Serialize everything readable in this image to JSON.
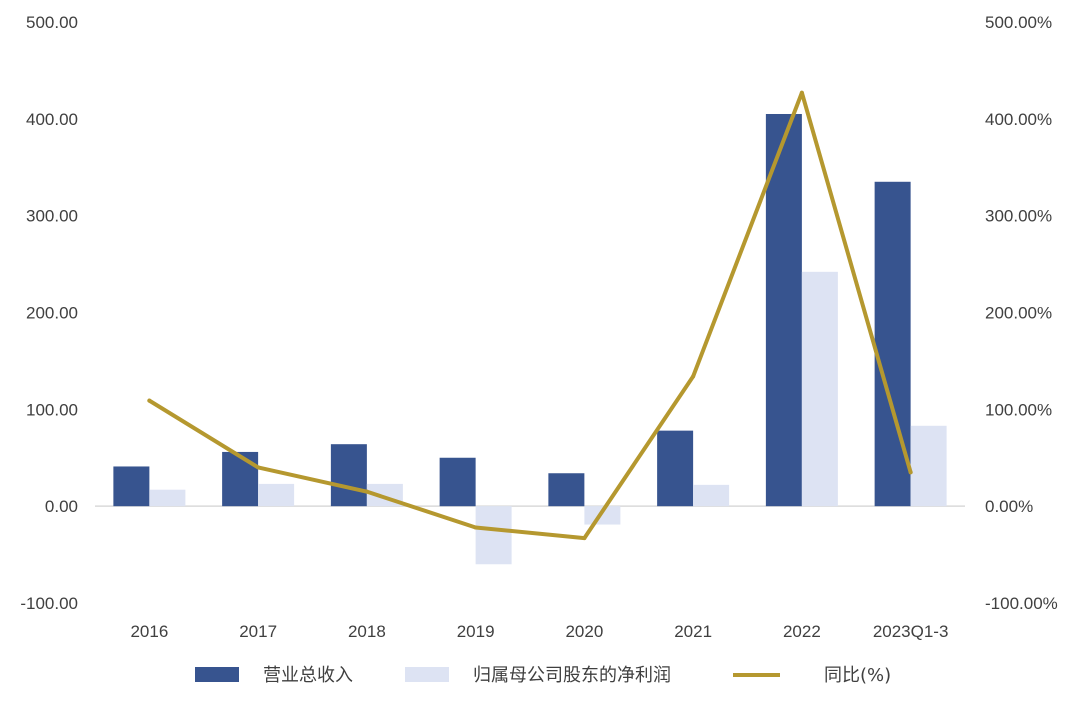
{
  "chart_data": {
    "type": "bar",
    "categories": [
      "2016",
      "2017",
      "2018",
      "2019",
      "2020",
      "2021",
      "2022",
      "2023Q1-3"
    ],
    "series": [
      {
        "name": "营业总收入",
        "kind": "bar",
        "axis": "left",
        "color": "#37548f",
        "values": [
          41,
          56,
          64,
          50,
          34,
          78,
          405,
          335
        ]
      },
      {
        "name": "归属母公司股东的净利润",
        "kind": "bar",
        "axis": "left",
        "color": "#dde3f3",
        "values": [
          17,
          23,
          23,
          -60,
          -19,
          22,
          242,
          83
        ]
      },
      {
        "name": "同比(%)",
        "kind": "line",
        "axis": "right",
        "color": "#b5982f",
        "values": [
          109,
          40,
          15,
          -22,
          -33,
          134,
          427,
          35
        ]
      }
    ],
    "left_axis": {
      "ylim": [
        -100,
        500
      ],
      "ticks": [
        "-100.00",
        "0.00",
        "100.00",
        "200.00",
        "300.00",
        "400.00",
        "500.00"
      ]
    },
    "right_axis": {
      "ylim": [
        -100,
        500
      ],
      "ticks": [
        "-100.00%",
        "0.00%",
        "100.00%",
        "200.00%",
        "300.00%",
        "400.00%",
        "500.00%"
      ]
    },
    "title": "",
    "xlabel": "",
    "ylabel": "",
    "grid": false,
    "legend_position": "bottom"
  }
}
